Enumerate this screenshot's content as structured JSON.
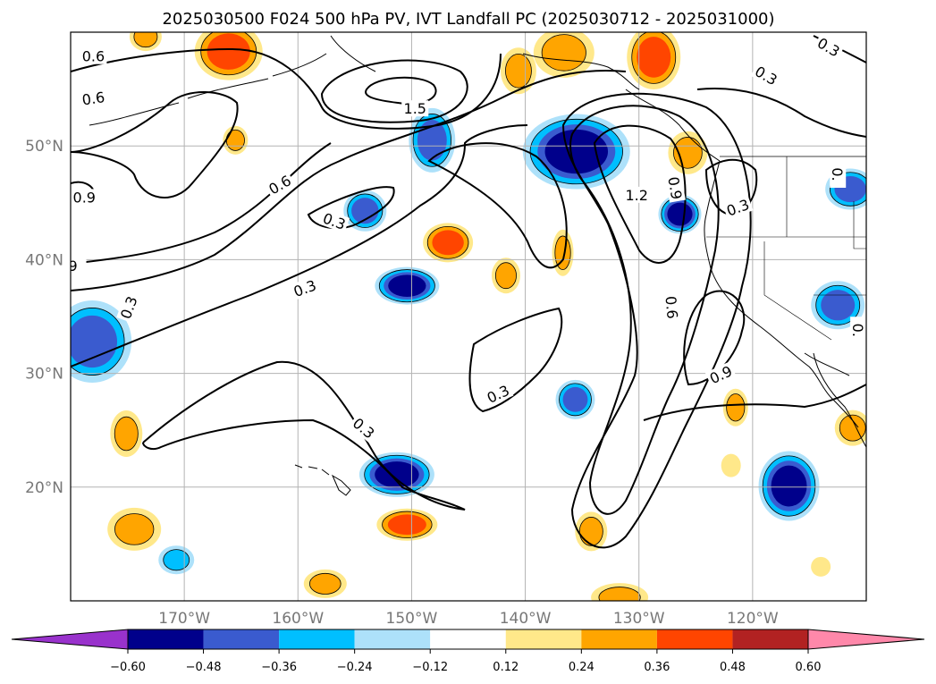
{
  "title": "2025030500 F024 500 hPa PV, IVT Landfall PC (2025030712 - 2025031000)",
  "chart_data": {
    "type": "contour_map",
    "map_extent": {
      "lon": [
        -180,
        -110
      ],
      "lat": [
        10,
        60
      ]
    },
    "grid": true,
    "xticks": [
      {
        "value": -170,
        "label": "170°W"
      },
      {
        "value": -160,
        "label": "160°W"
      },
      {
        "value": -150,
        "label": "150°W"
      },
      {
        "value": -140,
        "label": "140°W"
      },
      {
        "value": -130,
        "label": "130°W"
      },
      {
        "value": -120,
        "label": "120°W"
      }
    ],
    "yticks": [
      {
        "value": 50,
        "label": "50°N"
      },
      {
        "value": 40,
        "label": "40°N"
      },
      {
        "value": 30,
        "label": "30°N"
      },
      {
        "value": 20,
        "label": "20°N"
      }
    ],
    "colorbar": {
      "levels": [
        -0.6,
        -0.48,
        -0.36,
        -0.24,
        -0.12,
        0.12,
        0.24,
        0.36,
        0.48,
        0.6
      ],
      "tick_labels": [
        "−0.60",
        "−0.48",
        "−0.36",
        "−0.24",
        "−0.12",
        "0.12",
        "0.24",
        "0.36",
        "0.48",
        "0.60"
      ],
      "colors": [
        "#9932CC",
        "#00008B",
        "#3A5BCF",
        "#00BFFF",
        "#ADE1FA",
        "#FFFFFF",
        "#FFE88A",
        "#FFA500",
        "#FF4500",
        "#B22222",
        "#FF88AA"
      ],
      "extend": "both"
    },
    "pv_contours": [
      {
        "value": 0.3,
        "label": "0.3"
      },
      {
        "value": 0.6,
        "label": "0.6"
      },
      {
        "value": 0.9,
        "label": "0.9"
      },
      {
        "value": 1.2,
        "label": "1.2"
      },
      {
        "value": 1.5,
        "label": "1.5"
      }
    ],
    "contour_labels": [
      {
        "text": "0.6",
        "lon": -178,
        "lat": 57.9,
        "rot": 0
      },
      {
        "text": "0.6",
        "lon": -178,
        "lat": 54.2,
        "rot": -8
      },
      {
        "text": "1.5",
        "lon": -149.7,
        "lat": 53.3,
        "rot": 0
      },
      {
        "text": "0.9",
        "lon": -178.8,
        "lat": 45.5,
        "rot": 0
      },
      {
        "text": "0.6",
        "lon": -161.6,
        "lat": 46.6,
        "rot": -30
      },
      {
        "text": "0.3",
        "lon": -156.8,
        "lat": 43.4,
        "rot": 20
      },
      {
        "text": "0.3",
        "lon": -159.4,
        "lat": 37.5,
        "rot": -20
      },
      {
        "text": "9",
        "lon": -179.8,
        "lat": 39.5,
        "rot": 0
      },
      {
        "text": "0.3",
        "lon": -174.9,
        "lat": 35.8,
        "rot": -70
      },
      {
        "text": "0.3",
        "lon": -154.2,
        "lat": 25.2,
        "rot": 40
      },
      {
        "text": "0.3",
        "lon": -142.4,
        "lat": 28.2,
        "rot": -25
      },
      {
        "text": "1.2",
        "lon": -130.2,
        "lat": 45.7,
        "rot": 0
      },
      {
        "text": "0.9",
        "lon": -126.8,
        "lat": 46.3,
        "rot": 80
      },
      {
        "text": "0.6",
        "lon": -127.1,
        "lat": 35.8,
        "rot": 85
      },
      {
        "text": "0.9",
        "lon": -122.8,
        "lat": 29.9,
        "rot": -25
      },
      {
        "text": "0.3",
        "lon": -121.3,
        "lat": 44.6,
        "rot": -20
      },
      {
        "text": "0.3",
        "lon": -118.8,
        "lat": 56.2,
        "rot": 30
      },
      {
        "text": "0.3",
        "lon": -113.3,
        "lat": 58.7,
        "rot": 30
      },
      {
        "text": "0.",
        "lon": -112.5,
        "lat": 47.5,
        "rot": 90
      },
      {
        "text": "0.",
        "lon": -110.7,
        "lat": 33.8,
        "rot": 90
      }
    ],
    "ivt_pc_blobs": [
      {
        "lon": -135.5,
        "lat": 49.5,
        "rx": 54,
        "ry": 36,
        "level": -0.48
      },
      {
        "lon": -126.4,
        "lat": 44,
        "rx": 18,
        "ry": 16,
        "level": -0.48
      },
      {
        "lon": -150.4,
        "lat": 37.7,
        "rx": 30,
        "ry": 15,
        "level": -0.48
      },
      {
        "lon": -151.3,
        "lat": 21.1,
        "rx": 36,
        "ry": 19,
        "level": -0.48
      },
      {
        "lon": -116.8,
        "lat": 20.1,
        "rx": 28,
        "ry": 33,
        "level": -0.48
      },
      {
        "lon": -178.1,
        "lat": 32.8,
        "rx": 38,
        "ry": 40,
        "level": -0.36
      },
      {
        "lon": -148.2,
        "lat": 50.5,
        "rx": 20,
        "ry": 30,
        "level": -0.36
      },
      {
        "lon": -111.4,
        "lat": 46.2,
        "rx": 22,
        "ry": 17,
        "level": -0.36
      },
      {
        "lon": -112.5,
        "lat": 36,
        "rx": 24,
        "ry": 21,
        "level": -0.36
      },
      {
        "lon": -154.1,
        "lat": 44.3,
        "rx": 18,
        "ry": 17,
        "level": -0.36
      },
      {
        "lon": -135.6,
        "lat": 27.7,
        "rx": 16,
        "ry": 16,
        "level": -0.36
      },
      {
        "lon": -170.7,
        "lat": 13.6,
        "rx": 14,
        "ry": 10,
        "level": -0.24
      },
      {
        "lon": -166.1,
        "lat": 58.3,
        "rx": 32,
        "ry": 26,
        "level": 0.36
      },
      {
        "lon": -128.7,
        "lat": 57.8,
        "rx": 24,
        "ry": 30,
        "level": 0.36
      },
      {
        "lon": -146.8,
        "lat": 41.5,
        "rx": 22,
        "ry": 16,
        "level": 0.36
      },
      {
        "lon": -150.4,
        "lat": 16.7,
        "rx": 28,
        "ry": 12,
        "level": 0.36
      },
      {
        "lon": -136.6,
        "lat": 58.2,
        "rx": 28,
        "ry": 22,
        "level": 0.24
      },
      {
        "lon": -140.6,
        "lat": 56.6,
        "rx": 14,
        "ry": 20,
        "level": 0.24
      },
      {
        "lon": -125.7,
        "lat": 49.4,
        "rx": 16,
        "ry": 18,
        "level": 0.24
      },
      {
        "lon": -174.4,
        "lat": 16.3,
        "rx": 24,
        "ry": 18,
        "level": 0.24
      },
      {
        "lon": -175.1,
        "lat": 24.7,
        "rx": 12,
        "ry": 20,
        "level": 0.24
      },
      {
        "lon": -157.6,
        "lat": 11.5,
        "rx": 18,
        "ry": 10,
        "level": 0.24
      },
      {
        "lon": -131.7,
        "lat": 10.3,
        "rx": 26,
        "ry": 10,
        "level": 0.24
      },
      {
        "lon": -134.2,
        "lat": 16.1,
        "rx": 12,
        "ry": 16,
        "level": 0.24
      },
      {
        "lon": -141.7,
        "lat": 38.6,
        "rx": 10,
        "ry": 14,
        "level": 0.24
      },
      {
        "lon": -136.7,
        "lat": 40.6,
        "rx": 6,
        "ry": 20,
        "level": 0.24
      },
      {
        "lon": -121.5,
        "lat": 27,
        "rx": 8,
        "ry": 15,
        "level": 0.24
      },
      {
        "lon": -111.2,
        "lat": 25.2,
        "rx": 14,
        "ry": 14,
        "level": 0.24
      },
      {
        "lon": -173.4,
        "lat": 59.6,
        "rx": 12,
        "ry": 10,
        "level": 0.24
      },
      {
        "lon": -165.5,
        "lat": 50.5,
        "rx": 8,
        "ry": 10,
        "level": 0.24
      },
      {
        "lon": -121.9,
        "lat": 21.9,
        "rx": 5,
        "ry": 7,
        "level": 0.12
      },
      {
        "lon": -114,
        "lat": 13,
        "rx": 5,
        "ry": 5,
        "level": 0.12
      }
    ]
  }
}
